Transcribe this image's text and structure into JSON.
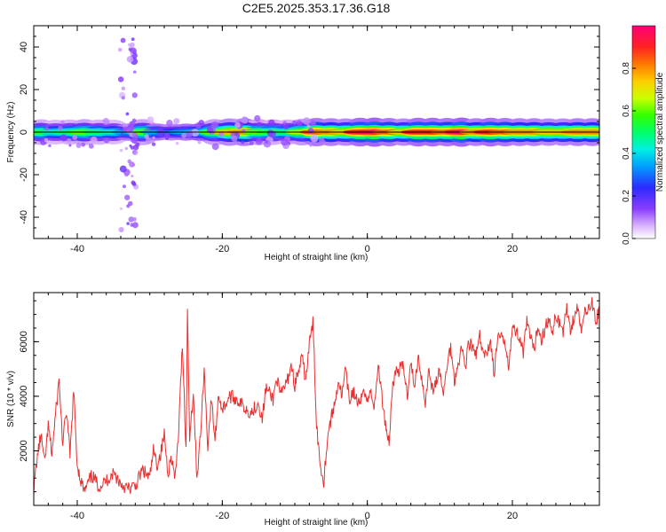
{
  "chart_data": [
    {
      "type": "heatmap",
      "title": "C2E5.2025.353.17.36.G18",
      "xlabel": "Height of straight line (km)",
      "ylabel": "Frequency (Hz)",
      "xlim": [
        -46,
        32
      ],
      "ylim": [
        -50,
        50
      ],
      "xticks": [
        -40,
        -20,
        0,
        20
      ],
      "yticks": [
        40,
        20,
        0,
        -20,
        -40
      ],
      "colorbar": {
        "label": "Normalized spectral amplitude",
        "ticks": [
          "0.0",
          "0.2",
          "0.4",
          "0.6",
          "0.8"
        ],
        "range": [
          0,
          1
        ],
        "colors": [
          "#ffffff",
          "#b366ff",
          "#5a1cff",
          "#0044ff",
          "#00c8ff",
          "#00ff80",
          "#33ff00",
          "#ccff00",
          "#ffcc00",
          "#ff7700",
          "#ff2222",
          "#ff0077"
        ]
      },
      "ridge_line": {
        "frequency_hz": 0,
        "color": "#000000"
      },
      "ridge_amplitude": [
        [
          -45,
          0.55
        ],
        [
          -43,
          0.45
        ],
        [
          -41,
          0.5
        ],
        [
          -39,
          0.6
        ],
        [
          -37,
          0.5
        ],
        [
          -35,
          0.45
        ],
        [
          -33,
          0.35
        ],
        [
          -31,
          0.6
        ],
        [
          -29,
          0.35
        ],
        [
          -27,
          0.3
        ],
        [
          -25,
          0.35
        ],
        [
          -23,
          0.4
        ],
        [
          -21,
          0.6
        ],
        [
          -19,
          0.75
        ],
        [
          -17,
          0.8
        ],
        [
          -15,
          0.6
        ],
        [
          -13,
          0.55
        ],
        [
          -11,
          0.5
        ],
        [
          -9,
          0.65
        ],
        [
          -7,
          0.85
        ],
        [
          -5,
          0.8
        ],
        [
          -3,
          0.75
        ],
        [
          -1,
          0.9
        ],
        [
          1,
          0.95
        ],
        [
          3,
          0.85
        ],
        [
          5,
          0.75
        ],
        [
          7,
          0.9
        ],
        [
          9,
          0.9
        ],
        [
          11,
          0.85
        ],
        [
          13,
          0.95
        ],
        [
          15,
          0.8
        ],
        [
          17,
          0.9
        ],
        [
          19,
          0.85
        ],
        [
          21,
          0.8
        ],
        [
          23,
          0.8
        ],
        [
          25,
          0.75
        ],
        [
          27,
          0.75
        ],
        [
          29,
          0.8
        ],
        [
          31,
          0.8
        ]
      ]
    },
    {
      "type": "line",
      "xlabel": "Height of straight line (km)",
      "ylabel": "SNR (10 * v/v)",
      "xlim": [
        -46,
        32
      ],
      "ylim": [
        0,
        7800
      ],
      "xticks": [
        -40,
        -20,
        0,
        20
      ],
      "yticks": [
        2000,
        4000,
        6000
      ],
      "series": [
        {
          "name": "SNR",
          "color": "#e83030",
          "points": [
            [
              -46,
              600
            ],
            [
              -45.5,
              1800
            ],
            [
              -45,
              2600
            ],
            [
              -44.5,
              1500
            ],
            [
              -44,
              2900
            ],
            [
              -43.5,
              1900
            ],
            [
              -43,
              3300
            ],
            [
              -42.5,
              4600
            ],
            [
              -42,
              2200
            ],
            [
              -41.5,
              3500
            ],
            [
              -41,
              1800
            ],
            [
              -40.5,
              4200
            ],
            [
              -40,
              1500
            ],
            [
              -39.5,
              900
            ],
            [
              -39,
              500
            ],
            [
              -38,
              1100
            ],
            [
              -37,
              700
            ],
            [
              -36,
              900
            ],
            [
              -35,
              1200
            ],
            [
              -34,
              800
            ],
            [
              -33,
              600
            ],
            [
              -32,
              700
            ],
            [
              -31,
              1300
            ],
            [
              -30,
              1000
            ],
            [
              -29.5,
              2000
            ],
            [
              -29,
              1500
            ],
            [
              -28.5,
              1900
            ],
            [
              -28,
              2600
            ],
            [
              -27.5,
              1200
            ],
            [
              -27,
              1800
            ],
            [
              -26.5,
              900
            ],
            [
              -26,
              2800
            ],
            [
              -25.5,
              6000
            ],
            [
              -25,
              2000
            ],
            [
              -24.8,
              7100
            ],
            [
              -24.5,
              2500
            ],
            [
              -24,
              4200
            ],
            [
              -23.5,
              1000
            ],
            [
              -23,
              2600
            ],
            [
              -22.5,
              5000
            ],
            [
              -22,
              2200
            ],
            [
              -21.5,
              3900
            ],
            [
              -21,
              2400
            ],
            [
              -20.5,
              4100
            ],
            [
              -20,
              3500
            ],
            [
              -19,
              4000
            ],
            [
              -18,
              3900
            ],
            [
              -17,
              3600
            ],
            [
              -16,
              3400
            ],
            [
              -15,
              3800
            ],
            [
              -14.5,
              3100
            ],
            [
              -14,
              4300
            ],
            [
              -13,
              3900
            ],
            [
              -12.5,
              4700
            ],
            [
              -12,
              4000
            ],
            [
              -11,
              4600
            ],
            [
              -10.5,
              5200
            ],
            [
              -10,
              4400
            ],
            [
              -9,
              5400
            ],
            [
              -8.5,
              4600
            ],
            [
              -8,
              5900
            ],
            [
              -7.5,
              6700
            ],
            [
              -7,
              3000
            ],
            [
              -6.5,
              1500
            ],
            [
              -6,
              900
            ],
            [
              -5.5,
              2500
            ],
            [
              -5,
              3200
            ],
            [
              -4.5,
              3700
            ],
            [
              -4,
              4600
            ],
            [
              -3.5,
              4000
            ],
            [
              -3,
              5000
            ],
            [
              -2.5,
              3800
            ],
            [
              -2,
              4200
            ],
            [
              -1,
              3600
            ],
            [
              -0.5,
              4400
            ],
            [
              0,
              3800
            ],
            [
              0.5,
              4200
            ],
            [
              1,
              3600
            ],
            [
              1.5,
              5200
            ],
            [
              2,
              4000
            ],
            [
              2.5,
              3000
            ],
            [
              3,
              2300
            ],
            [
              3.5,
              4500
            ],
            [
              4,
              4900
            ],
            [
              5,
              5100
            ],
            [
              5.5,
              4000
            ],
            [
              6,
              5400
            ],
            [
              6.5,
              4200
            ],
            [
              7,
              5500
            ],
            [
              8,
              3800
            ],
            [
              8.5,
              5000
            ],
            [
              9,
              4200
            ],
            [
              10,
              4900
            ],
            [
              10.5,
              4000
            ],
            [
              11,
              5200
            ],
            [
              11.5,
              5800
            ],
            [
              12,
              4600
            ],
            [
              13,
              5800
            ],
            [
              13.5,
              5100
            ],
            [
              14,
              6000
            ],
            [
              15,
              5500
            ],
            [
              15.5,
              6200
            ],
            [
              16,
              5400
            ],
            [
              17,
              6000
            ],
            [
              17.5,
              4800
            ],
            [
              18,
              6200
            ],
            [
              19,
              6000
            ],
            [
              19.5,
              5200
            ],
            [
              20,
              6500
            ],
            [
              21,
              6200
            ],
            [
              21.5,
              5600
            ],
            [
              22,
              6700
            ],
            [
              23,
              5600
            ],
            [
              23.5,
              6600
            ],
            [
              24,
              6100
            ],
            [
              25,
              6900
            ],
            [
              25.5,
              6200
            ],
            [
              26,
              7000
            ],
            [
              27,
              6400
            ],
            [
              27.5,
              7200
            ],
            [
              28,
              6500
            ],
            [
              29,
              7300
            ],
            [
              29.5,
              6300
            ],
            [
              30,
              7100
            ],
            [
              31,
              7500
            ],
            [
              31.5,
              6600
            ],
            [
              32,
              7300
            ]
          ]
        }
      ]
    }
  ]
}
